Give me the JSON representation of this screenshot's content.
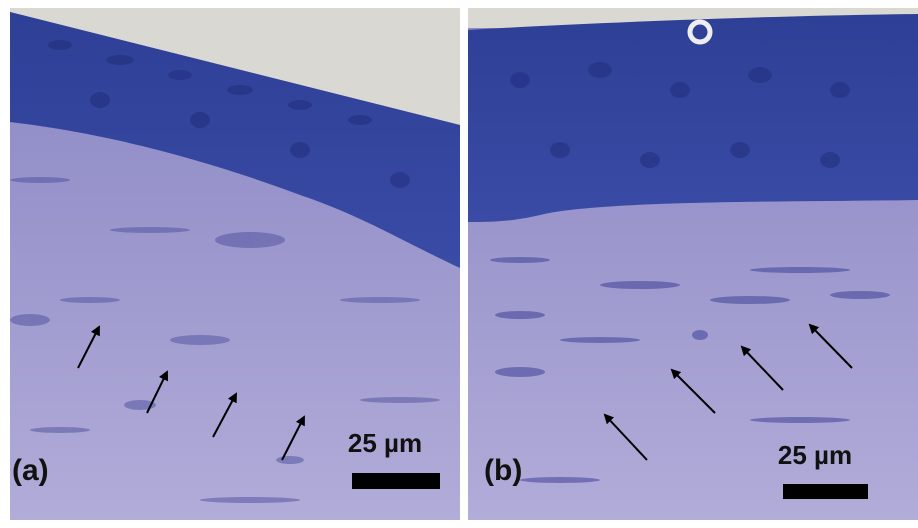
{
  "panels": [
    {
      "label": "(a)",
      "scale_bar": "25 µm"
    },
    {
      "label": "(b)",
      "scale_bar": "25 µm"
    }
  ]
}
